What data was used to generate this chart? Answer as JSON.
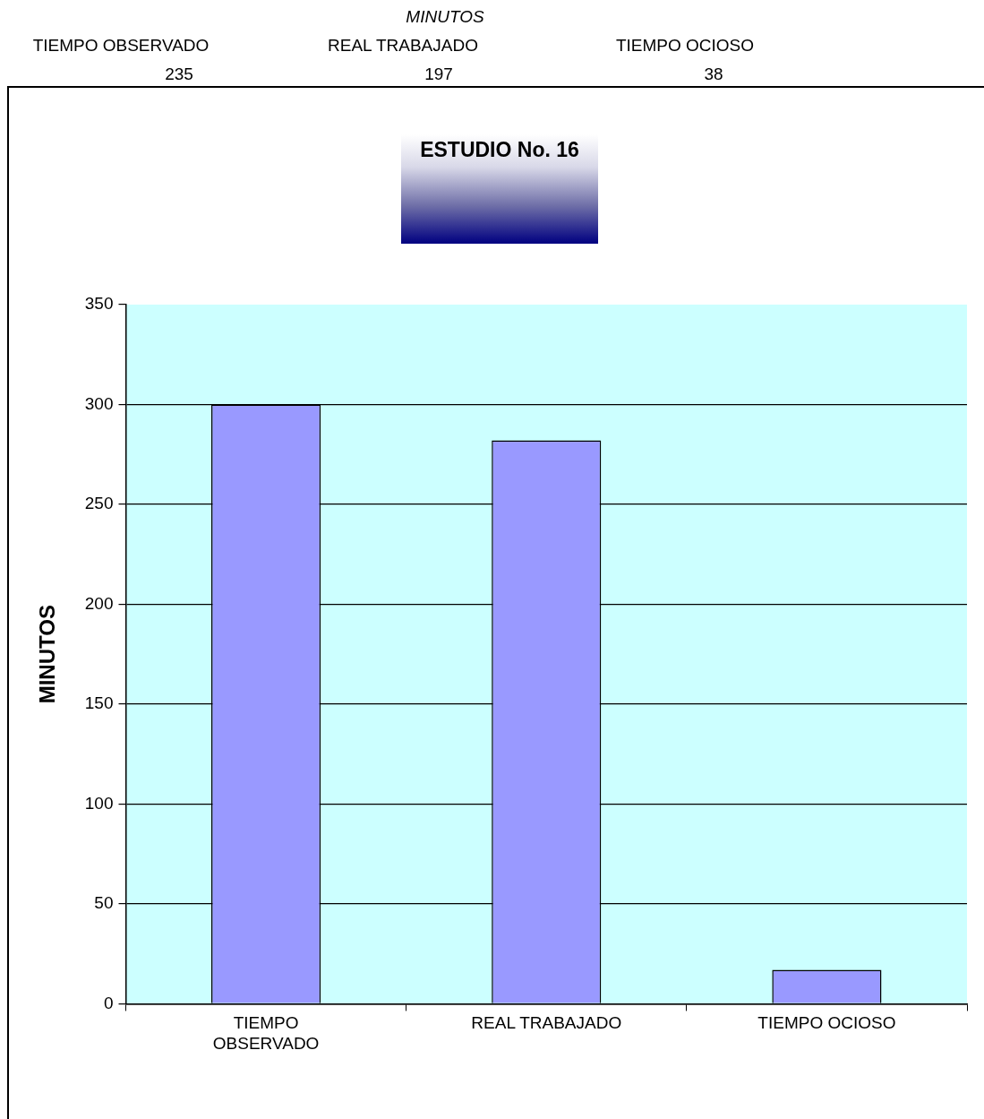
{
  "chart_data": {
    "type": "bar",
    "title": "ESTUDIO No. 16",
    "ylabel": "MINUTOS",
    "categories": [
      "TIEMPO OBSERVADO",
      "REAL TRABAJADO",
      "TIEMPO OCIOSO"
    ],
    "values": [
      300,
      282,
      17
    ],
    "color": "#9999ff",
    "ylim": [
      0,
      350
    ],
    "yticks": [
      0,
      50,
      100,
      150,
      200,
      250,
      300,
      350
    ],
    "grid": "y",
    "annotations": [
      "MINUTOS",
      "TIEMPO OBSERVADO",
      "REAL TRABAJADO",
      "TIEMPO OCIOSO",
      "235",
      "197",
      "38"
    ]
  }
}
